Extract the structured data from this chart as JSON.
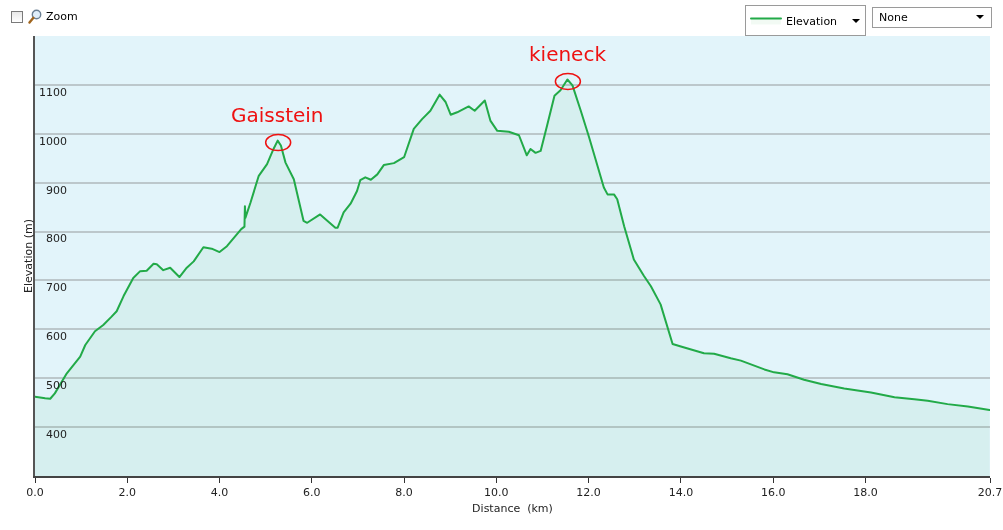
{
  "chart_data": {
    "type": "area",
    "xlabel": "Distance  (km)",
    "ylabel": "Elevation (m)",
    "xlim": [
      0,
      20.7
    ],
    "xticks": [
      {
        "value": 0,
        "label": "0.0"
      },
      {
        "value": 2,
        "label": "2.0"
      },
      {
        "value": 4,
        "label": "4.0"
      },
      {
        "value": 6,
        "label": "6.0"
      },
      {
        "value": 8,
        "label": "8.0"
      },
      {
        "value": 10,
        "label": "10.0"
      },
      {
        "value": 12,
        "label": "12.0"
      },
      {
        "value": 14,
        "label": "14.0"
      },
      {
        "value": 16,
        "label": "16.0"
      },
      {
        "value": 18,
        "label": "18.0"
      },
      20.7
    ],
    "ylim": [
      300,
      1200
    ],
    "yticks": [
      400,
      500,
      600,
      700,
      800,
      900,
      1000,
      1100
    ],
    "grid": "y",
    "legend": "top right",
    "series": [
      {
        "name": "Elevation",
        "color": "#22aa48",
        "x": [
          0,
          0.22,
          0.33,
          0.43,
          0.69,
          0.98,
          1.09,
          1.3,
          1.48,
          1.66,
          1.77,
          1.92,
          2.13,
          2.28,
          2.42,
          2.57,
          2.64,
          2.78,
          2.93,
          3.13,
          3.29,
          3.44,
          3.65,
          3.83,
          4.0,
          4.16,
          4.47,
          4.54,
          4.55,
          4.56,
          4.67,
          4.85,
          5.03,
          5.17,
          5.26,
          5.33,
          5.43,
          5.61,
          5.82,
          5.9,
          6.18,
          6.51,
          6.56,
          6.69,
          6.84,
          6.98,
          7.05,
          7.16,
          7.28,
          7.42,
          7.56,
          7.78,
          8.0,
          8.21,
          8.39,
          8.57,
          8.77,
          8.9,
          9.01,
          9.15,
          9.4,
          9.53,
          9.75,
          9.87,
          10.02,
          10.27,
          10.49,
          10.66,
          10.74,
          10.85,
          10.96,
          11.1,
          11.26,
          11.39,
          11.54,
          11.65,
          11.83,
          12.01,
          12.33,
          12.41,
          12.55,
          12.62,
          12.77,
          12.98,
          13.2,
          13.35,
          13.56,
          13.82,
          14.0,
          14.5,
          14.72,
          15.08,
          15.3,
          15.81,
          16.02,
          16.31,
          16.67,
          17.04,
          17.54,
          18.12,
          18.63,
          19.06,
          19.35,
          19.78,
          20.22,
          20.69
        ],
        "values": [
          462,
          459,
          458,
          469,
          510,
          544,
          568,
          596,
          609,
          626,
          637,
          668,
          705,
          719,
          720,
          734,
          733,
          721,
          726,
          707,
          726,
          739,
          768,
          765,
          758,
          770,
          805,
          810,
          852,
          828,
          859,
          914,
          938,
          969,
          986,
          976,
          941,
          907,
          822,
          818,
          835,
          808,
          808,
          839,
          857,
          883,
          905,
          911,
          906,
          917,
          936,
          940,
          952,
          1010,
          1030,
          1047,
          1080,
          1065,
          1039,
          1044,
          1056,
          1047,
          1068,
          1027,
          1006,
          1004,
          997,
          956,
          969,
          961,
          965,
          1017,
          1078,
          1089,
          1111,
          1099,
          1047,
          993,
          890,
          876,
          876,
          866,
          811,
          743,
          709,
          688,
          651,
          570,
          565,
          551,
          550,
          541,
          536,
          518,
          512,
          508,
          497,
          488,
          479,
          471,
          461,
          457,
          454,
          447,
          442,
          435
        ]
      }
    ],
    "annotations": [
      "Zoom",
      "None",
      {
        "text": "Gaisstein",
        "x": 5.26,
        "y": 986
      },
      {
        "text": "kieneck",
        "x": 11.54,
        "y": 1111
      }
    ]
  }
}
